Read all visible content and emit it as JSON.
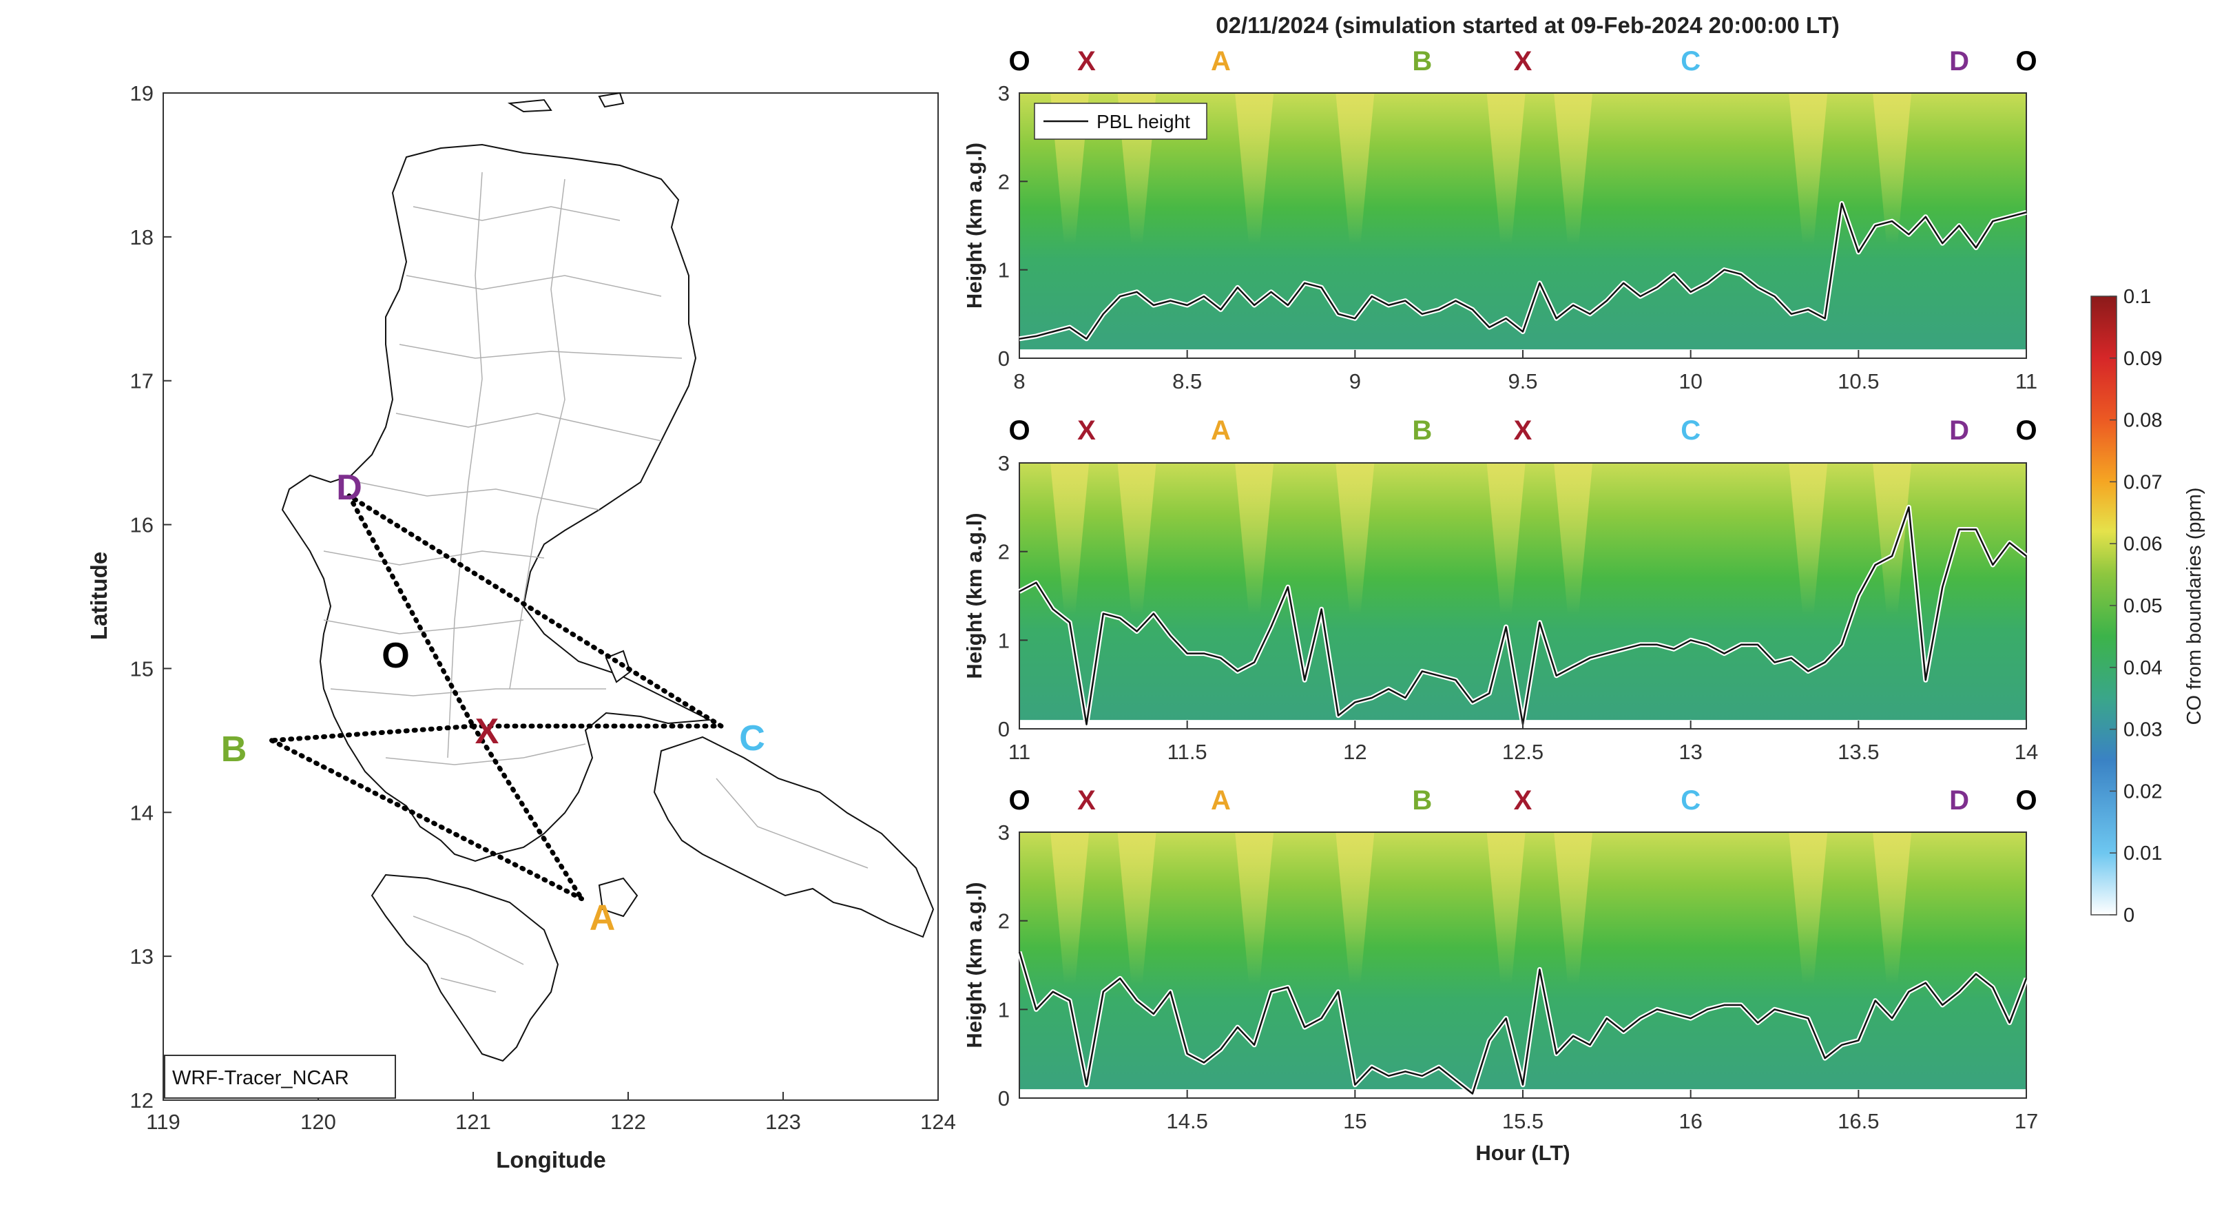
{
  "figure_title": "02/11/2024 (simulation started at 09-Feb-2024 20:00:00 LT)",
  "map": {
    "xlabel": "Longitude",
    "ylabel": "Latitude",
    "xticks": [
      "119",
      "120",
      "121",
      "122",
      "123",
      "124"
    ],
    "yticks": [
      "12",
      "13",
      "14",
      "15",
      "16",
      "17",
      "18",
      "19"
    ],
    "model_label": "WRF-Tracer_NCAR",
    "points": [
      {
        "label": "O",
        "lon": 120.5,
        "lat": 15.15,
        "color": "#000000"
      },
      {
        "label": "X",
        "lon": 121.0,
        "lat": 14.6,
        "color": "#a31a2e"
      },
      {
        "label": "A",
        "lon": 121.7,
        "lat": 13.4,
        "color": "#eca627"
      },
      {
        "label": "B",
        "lon": 119.7,
        "lat": 14.5,
        "color": "#77ac30"
      },
      {
        "label": "C",
        "lon": 122.6,
        "lat": 14.6,
        "color": "#4dbeee"
      },
      {
        "label": "D",
        "lon": 120.2,
        "lat": 16.2,
        "color": "#7e2f8e"
      }
    ]
  },
  "station_markers": [
    {
      "label": "O",
      "hour_offset": 0.0,
      "color": "#000000"
    },
    {
      "label": "X",
      "hour_offset": 0.2,
      "color": "#a31a2e"
    },
    {
      "label": "A",
      "hour_offset": 0.6,
      "color": "#eca627"
    },
    {
      "label": "B",
      "hour_offset": 1.2,
      "color": "#77ac30"
    },
    {
      "label": "X",
      "hour_offset": 1.5,
      "color": "#a31a2e"
    },
    {
      "label": "C",
      "hour_offset": 2.0,
      "color": "#4dbeee"
    },
    {
      "label": "D",
      "hour_offset": 2.8,
      "color": "#7e2f8e"
    },
    {
      "label": "O",
      "hour_offset": 3.0,
      "color": "#000000"
    }
  ],
  "colorbar": {
    "label": "CO from boundaries (ppm)",
    "ticks": [
      "0",
      "0.01",
      "0.02",
      "0.03",
      "0.04",
      "0.05",
      "0.06",
      "0.07",
      "0.08",
      "0.09",
      "0.1"
    ]
  },
  "panels": [
    {
      "ylabel": "Height (km a.g.l)",
      "yticks": [
        "0",
        "1",
        "2",
        "3"
      ],
      "xticks": [
        "8",
        "8.5",
        "9",
        "9.5",
        "10",
        "10.5",
        "11"
      ],
      "xlabel": ""
    },
    {
      "ylabel": "Height (km a.g.l)",
      "yticks": [
        "0",
        "1",
        "2",
        "3"
      ],
      "xticks": [
        "11",
        "11.5",
        "12",
        "12.5",
        "13",
        "13.5",
        "14"
      ],
      "xlabel": ""
    },
    {
      "ylabel": "Height (km a.g.l)",
      "yticks": [
        "0",
        "1",
        "2",
        "3"
      ],
      "xticks": [
        "14.5",
        "15",
        "15.5",
        "16",
        "16.5",
        "17"
      ],
      "xlabel": "Hour (LT)"
    }
  ],
  "legend": {
    "pbl_label": "PBL height"
  },
  "chart_data": [
    {
      "type": "line",
      "title": "",
      "xlabel": "",
      "ylabel": "Height (km a.g.l)",
      "xlim": [
        8,
        11
      ],
      "ylim": [
        0,
        3
      ],
      "series": [
        {
          "name": "PBL height",
          "x": [
            8.0,
            8.05,
            8.1,
            8.15,
            8.2,
            8.25,
            8.3,
            8.35,
            8.4,
            8.45,
            8.5,
            8.55,
            8.6,
            8.65,
            8.7,
            8.75,
            8.8,
            8.85,
            8.9,
            8.95,
            9.0,
            9.05,
            9.1,
            9.15,
            9.2,
            9.25,
            9.3,
            9.35,
            9.4,
            9.45,
            9.5,
            9.55,
            9.6,
            9.65,
            9.7,
            9.75,
            9.8,
            9.85,
            9.9,
            9.95,
            10.0,
            10.05,
            10.1,
            10.15,
            10.2,
            10.25,
            10.3,
            10.35,
            10.4,
            10.45,
            10.5,
            10.55,
            10.6,
            10.65,
            10.7,
            10.75,
            10.8,
            10.85,
            10.9,
            10.95,
            11.0
          ],
          "y": [
            0.22,
            0.25,
            0.3,
            0.35,
            0.22,
            0.5,
            0.7,
            0.75,
            0.6,
            0.65,
            0.6,
            0.7,
            0.55,
            0.8,
            0.6,
            0.75,
            0.6,
            0.85,
            0.8,
            0.5,
            0.45,
            0.7,
            0.6,
            0.65,
            0.5,
            0.55,
            0.65,
            0.55,
            0.35,
            0.45,
            0.3,
            0.85,
            0.45,
            0.6,
            0.5,
            0.65,
            0.85,
            0.7,
            0.8,
            0.95,
            0.75,
            0.85,
            1.0,
            0.95,
            0.8,
            0.7,
            0.5,
            0.55,
            0.45,
            1.75,
            1.2,
            1.5,
            1.55,
            1.4,
            1.6,
            1.3,
            1.5,
            1.25,
            1.55,
            1.6,
            1.65
          ]
        }
      ]
    },
    {
      "type": "line",
      "title": "",
      "xlabel": "",
      "ylabel": "Height (km a.g.l)",
      "xlim": [
        11,
        14
      ],
      "ylim": [
        0,
        3
      ],
      "series": [
        {
          "name": "PBL height",
          "x": [
            11.0,
            11.05,
            11.1,
            11.15,
            11.2,
            11.25,
            11.3,
            11.35,
            11.4,
            11.45,
            11.5,
            11.55,
            11.6,
            11.65,
            11.7,
            11.75,
            11.8,
            11.85,
            11.9,
            11.95,
            12.0,
            12.05,
            12.1,
            12.15,
            12.2,
            12.25,
            12.3,
            12.35,
            12.4,
            12.45,
            12.5,
            12.55,
            12.6,
            12.65,
            12.7,
            12.75,
            12.8,
            12.85,
            12.9,
            12.95,
            13.0,
            13.05,
            13.1,
            13.15,
            13.2,
            13.25,
            13.3,
            13.35,
            13.4,
            13.45,
            13.5,
            13.55,
            13.6,
            13.65,
            13.7,
            13.75,
            13.8,
            13.85,
            13.9,
            13.95,
            14.0
          ],
          "y": [
            1.55,
            1.65,
            1.35,
            1.2,
            0.05,
            1.3,
            1.25,
            1.1,
            1.3,
            1.05,
            0.85,
            0.85,
            0.8,
            0.65,
            0.75,
            1.15,
            1.6,
            0.55,
            1.35,
            0.15,
            0.3,
            0.35,
            0.45,
            0.35,
            0.65,
            0.6,
            0.55,
            0.3,
            0.4,
            1.15,
            0.05,
            1.2,
            0.6,
            0.7,
            0.8,
            0.85,
            0.9,
            0.95,
            0.95,
            0.9,
            1.0,
            0.95,
            0.85,
            0.95,
            0.95,
            0.75,
            0.8,
            0.65,
            0.75,
            0.95,
            1.5,
            1.85,
            1.95,
            2.5,
            0.55,
            1.6,
            2.25,
            2.25,
            1.85,
            2.1,
            1.95
          ]
        }
      ]
    },
    {
      "type": "line",
      "title": "",
      "xlabel": "Hour (LT)",
      "ylabel": "Height (km a.g.l)",
      "xlim": [
        14,
        17
      ],
      "ylim": [
        0,
        3
      ],
      "series": [
        {
          "name": "PBL height",
          "x": [
            14.0,
            14.05,
            14.1,
            14.15,
            14.2,
            14.25,
            14.3,
            14.35,
            14.4,
            14.45,
            14.5,
            14.55,
            14.6,
            14.65,
            14.7,
            14.75,
            14.8,
            14.85,
            14.9,
            14.95,
            15.0,
            15.05,
            15.1,
            15.15,
            15.2,
            15.25,
            15.3,
            15.35,
            15.4,
            15.45,
            15.5,
            15.55,
            15.6,
            15.65,
            15.7,
            15.75,
            15.8,
            15.85,
            15.9,
            15.95,
            16.0,
            16.05,
            16.1,
            16.15,
            16.2,
            16.25,
            16.3,
            16.35,
            16.4,
            16.45,
            16.5,
            16.55,
            16.6,
            16.65,
            16.7,
            16.75,
            16.8,
            16.85,
            16.9,
            16.95,
            17.0
          ],
          "y": [
            1.65,
            1.0,
            1.2,
            1.1,
            0.15,
            1.2,
            1.35,
            1.1,
            0.95,
            1.2,
            0.5,
            0.4,
            0.55,
            0.8,
            0.6,
            1.2,
            1.25,
            0.8,
            0.9,
            1.2,
            0.15,
            0.35,
            0.25,
            0.3,
            0.25,
            0.35,
            0.2,
            0.05,
            0.65,
            0.9,
            0.15,
            1.45,
            0.5,
            0.7,
            0.6,
            0.9,
            0.75,
            0.9,
            1.0,
            0.95,
            0.9,
            1.0,
            1.05,
            1.05,
            0.85,
            1.0,
            0.95,
            0.9,
            0.45,
            0.6,
            0.65,
            1.1,
            0.9,
            1.2,
            1.3,
            1.05,
            1.2,
            1.4,
            1.25,
            0.85,
            1.35
          ]
        }
      ]
    }
  ]
}
